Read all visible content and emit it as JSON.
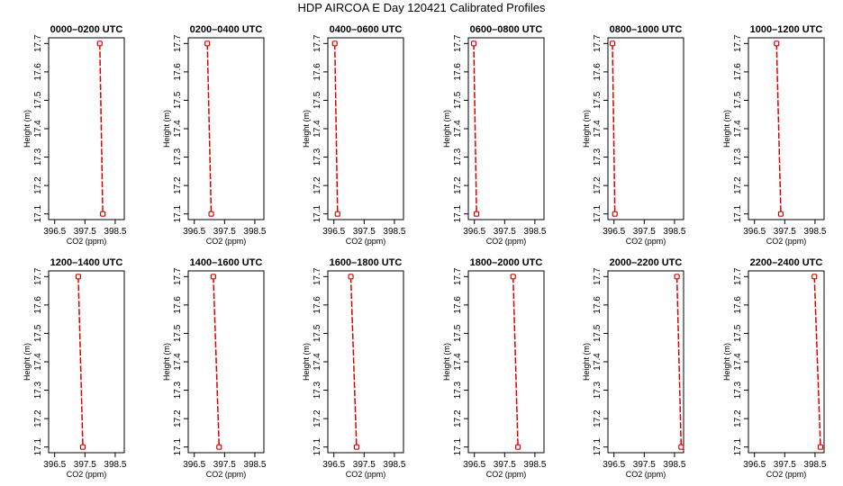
{
  "page": {
    "title": "HDP AIRCOA E  Day 120421  Calibrated Profiles"
  },
  "style": {
    "line_color": "#e00000",
    "axis_color": "#000000",
    "background": "#ffffff"
  },
  "chart_data": [
    {
      "type": "line",
      "title": "0000–0200 UTC",
      "xlabel": "CO2 (ppm)",
      "ylabel": "Height (m)",
      "xlim": [
        396.3,
        398.8
      ],
      "ylim": [
        17.08,
        17.72
      ],
      "xticks": [
        "396.5",
        "397.5",
        "398.5"
      ],
      "yticks": [
        "17.1",
        "17.2",
        "17.3",
        "17.4",
        "17.5",
        "17.6",
        "17.7"
      ],
      "points": [
        {
          "x": 397.99,
          "y": 17.7
        },
        {
          "x": 398.09,
          "y": 17.1
        }
      ]
    },
    {
      "type": "line",
      "title": "0200–0400 UTC",
      "xlabel": "CO2 (ppm)",
      "ylabel": "Height (m)",
      "xlim": [
        396.3,
        398.8
      ],
      "ylim": [
        17.08,
        17.72
      ],
      "xticks": [
        "396.5",
        "397.5",
        "398.5"
      ],
      "yticks": [
        "17.1",
        "17.2",
        "17.3",
        "17.4",
        "17.5",
        "17.6",
        "17.7"
      ],
      "points": [
        {
          "x": 396.93,
          "y": 17.7
        },
        {
          "x": 397.06,
          "y": 17.1
        }
      ]
    },
    {
      "type": "line",
      "title": "0400–0600 UTC",
      "xlabel": "CO2 (ppm)",
      "ylabel": "Height (m)",
      "xlim": [
        396.3,
        398.8
      ],
      "ylim": [
        17.08,
        17.72
      ],
      "xticks": [
        "396.5",
        "397.5",
        "398.5"
      ],
      "yticks": [
        "17.1",
        "17.2",
        "17.3",
        "17.4",
        "17.5",
        "17.6",
        "17.7"
      ],
      "points": [
        {
          "x": 396.53,
          "y": 17.7
        },
        {
          "x": 396.62,
          "y": 17.1
        }
      ]
    },
    {
      "type": "line",
      "title": "0600–0800 UTC",
      "xlabel": "CO2 (ppm)",
      "ylabel": "Height (m)",
      "xlim": [
        396.3,
        398.8
      ],
      "ylim": [
        17.08,
        17.72
      ],
      "xticks": [
        "396.5",
        "397.5",
        "398.5"
      ],
      "yticks": [
        "17.1",
        "17.2",
        "17.3",
        "17.4",
        "17.5",
        "17.6",
        "17.7"
      ],
      "points": [
        {
          "x": 396.48,
          "y": 17.7
        },
        {
          "x": 396.57,
          "y": 17.1
        }
      ]
    },
    {
      "type": "line",
      "title": "0800–1000 UTC",
      "xlabel": "CO2 (ppm)",
      "ylabel": "Height (m)",
      "xlim": [
        396.3,
        398.8
      ],
      "ylim": [
        17.08,
        17.72
      ],
      "xticks": [
        "396.5",
        "397.5",
        "398.5"
      ],
      "yticks": [
        "17.1",
        "17.2",
        "17.3",
        "17.4",
        "17.5",
        "17.6",
        "17.7"
      ],
      "points": [
        {
          "x": 396.45,
          "y": 17.7
        },
        {
          "x": 396.53,
          "y": 17.1
        }
      ]
    },
    {
      "type": "line",
      "title": "1000–1200 UTC",
      "xlabel": "CO2 (ppm)",
      "ylabel": "Height (m)",
      "xlim": [
        396.3,
        398.8
      ],
      "ylim": [
        17.08,
        17.72
      ],
      "xticks": [
        "396.5",
        "397.5",
        "398.5"
      ],
      "yticks": [
        "17.1",
        "17.2",
        "17.3",
        "17.4",
        "17.5",
        "17.6",
        "17.7"
      ],
      "points": [
        {
          "x": 397.23,
          "y": 17.7
        },
        {
          "x": 397.37,
          "y": 17.1
        }
      ]
    },
    {
      "type": "line",
      "title": "1200–1400 UTC",
      "xlabel": "CO2 (ppm)",
      "ylabel": "Height (m)",
      "xlim": [
        396.3,
        398.8
      ],
      "ylim": [
        17.08,
        17.72
      ],
      "xticks": [
        "396.5",
        "397.5",
        "398.5"
      ],
      "yticks": [
        "17.1",
        "17.2",
        "17.3",
        "17.4",
        "17.5",
        "17.6",
        "17.7"
      ],
      "points": [
        {
          "x": 397.28,
          "y": 17.7
        },
        {
          "x": 397.43,
          "y": 17.1
        }
      ]
    },
    {
      "type": "line",
      "title": "1400–1600 UTC",
      "xlabel": "CO2 (ppm)",
      "ylabel": "Height (m)",
      "xlim": [
        396.3,
        398.8
      ],
      "ylim": [
        17.08,
        17.72
      ],
      "xticks": [
        "396.5",
        "397.5",
        "398.5"
      ],
      "yticks": [
        "17.1",
        "17.2",
        "17.3",
        "17.4",
        "17.5",
        "17.6",
        "17.7"
      ],
      "points": [
        {
          "x": 397.13,
          "y": 17.7
        },
        {
          "x": 397.32,
          "y": 17.1
        }
      ]
    },
    {
      "type": "line",
      "title": "1600–1800 UTC",
      "xlabel": "CO2 (ppm)",
      "ylabel": "Height (m)",
      "xlim": [
        396.3,
        398.8
      ],
      "ylim": [
        17.08,
        17.72
      ],
      "xticks": [
        "396.5",
        "397.5",
        "398.5"
      ],
      "yticks": [
        "17.1",
        "17.2",
        "17.3",
        "17.4",
        "17.5",
        "17.6",
        "17.7"
      ],
      "points": [
        {
          "x": 397.06,
          "y": 17.7
        },
        {
          "x": 397.25,
          "y": 17.1
        }
      ]
    },
    {
      "type": "line",
      "title": "1800–2000 UTC",
      "xlabel": "CO2 (ppm)",
      "ylabel": "Height (m)",
      "xlim": [
        396.3,
        398.8
      ],
      "ylim": [
        17.08,
        17.72
      ],
      "xticks": [
        "396.5",
        "397.5",
        "398.5"
      ],
      "yticks": [
        "17.1",
        "17.2",
        "17.3",
        "17.4",
        "17.5",
        "17.6",
        "17.7"
      ],
      "points": [
        {
          "x": 397.78,
          "y": 17.7
        },
        {
          "x": 397.94,
          "y": 17.1
        }
      ]
    },
    {
      "type": "line",
      "title": "2000–2200 UTC",
      "xlabel": "CO2 (ppm)",
      "ylabel": "Height (m)",
      "xlim": [
        396.3,
        398.8
      ],
      "ylim": [
        17.08,
        17.72
      ],
      "xticks": [
        "396.5",
        "397.5",
        "398.5"
      ],
      "yticks": [
        "17.1",
        "17.2",
        "17.3",
        "17.4",
        "17.5",
        "17.6",
        "17.7"
      ],
      "points": [
        {
          "x": 398.58,
          "y": 17.7
        },
        {
          "x": 398.72,
          "y": 17.1
        }
      ]
    },
    {
      "type": "line",
      "title": "2200–2400 UTC",
      "xlabel": "CO2 (ppm)",
      "ylabel": "Height (m)",
      "xlim": [
        396.3,
        398.8
      ],
      "ylim": [
        17.08,
        17.72
      ],
      "xticks": [
        "396.5",
        "397.5",
        "398.5"
      ],
      "yticks": [
        "17.1",
        "17.2",
        "17.3",
        "17.4",
        "17.5",
        "17.6",
        "17.7"
      ],
      "points": [
        {
          "x": 398.48,
          "y": 17.7
        },
        {
          "x": 398.68,
          "y": 17.1
        }
      ]
    }
  ]
}
